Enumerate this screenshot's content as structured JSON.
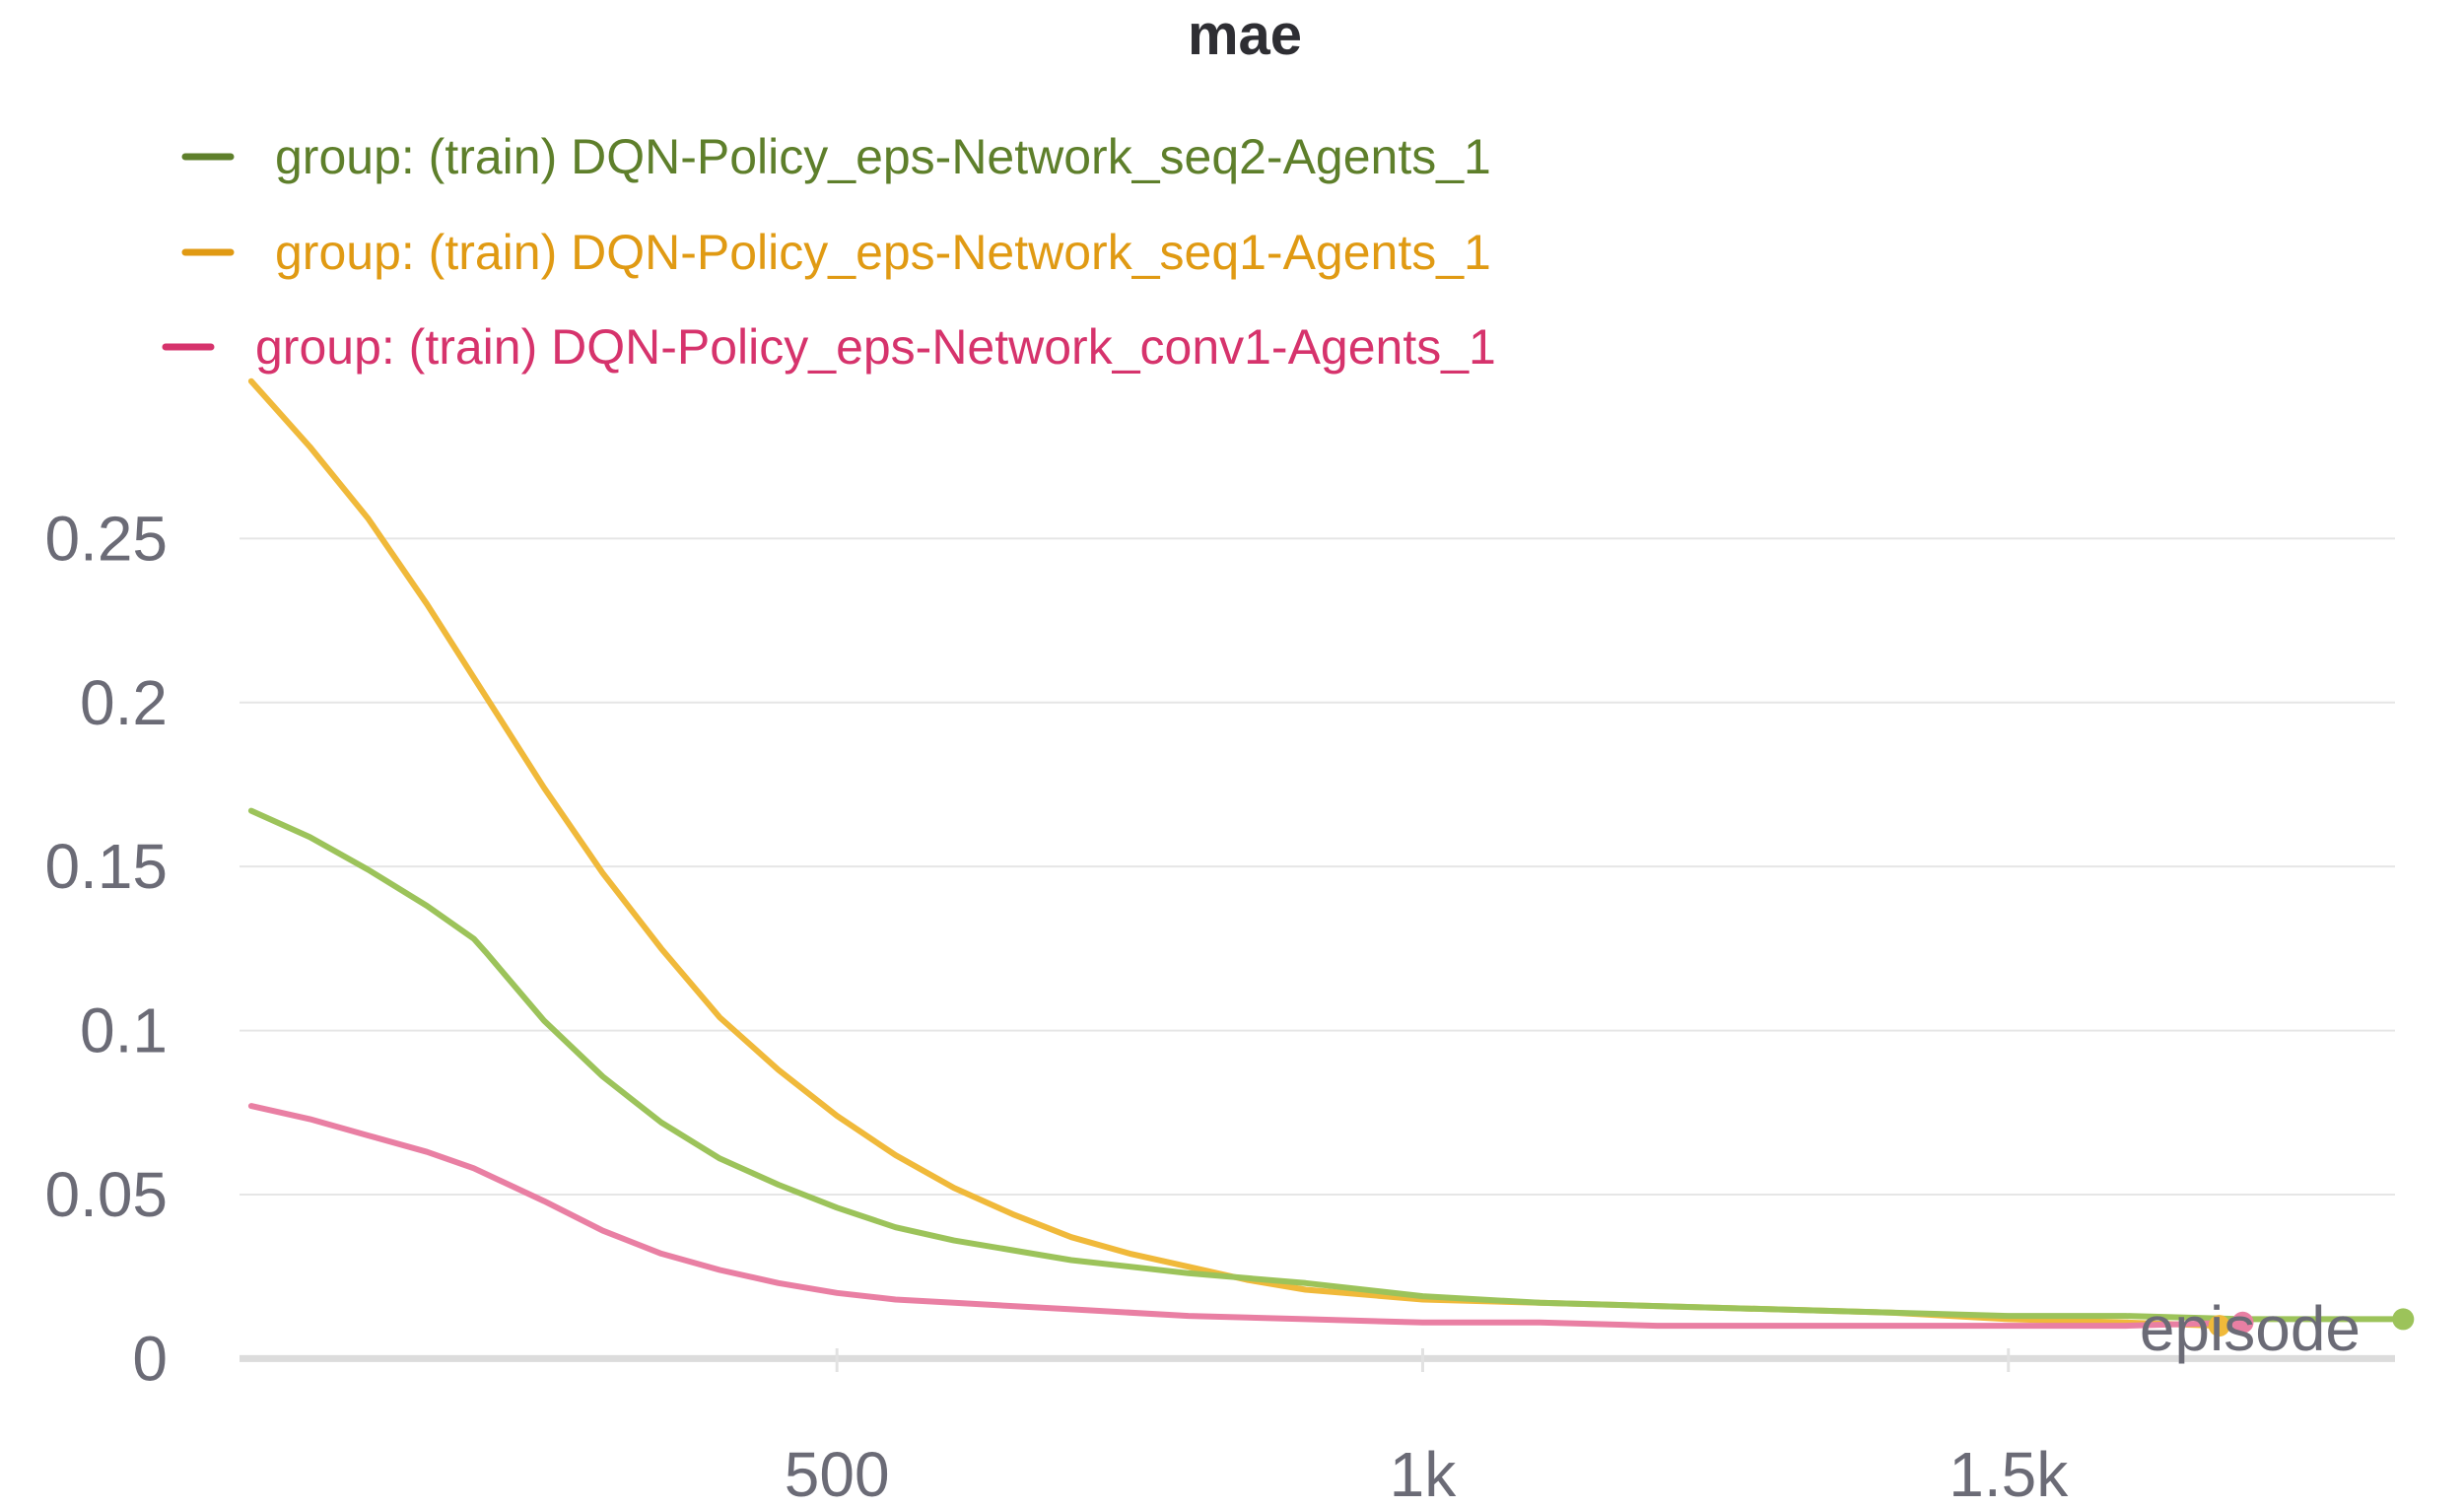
{
  "chart_data": {
    "type": "line",
    "title": "mae",
    "xlabel": "episode",
    "ylabel": "",
    "xlim": [
      -10,
      1830
    ],
    "ylim": [
      -0.005,
      0.3
    ],
    "x_ticks": [
      {
        "value": 500,
        "label": "500"
      },
      {
        "value": 1000,
        "label": "1k"
      },
      {
        "value": 1500,
        "label": "1.5k"
      }
    ],
    "y_ticks": [
      {
        "value": 0,
        "label": "0"
      },
      {
        "value": 0.05,
        "label": "0.05"
      },
      {
        "value": 0.1,
        "label": "0.1"
      },
      {
        "value": 0.15,
        "label": "0.15"
      },
      {
        "value": 0.2,
        "label": "0.2"
      },
      {
        "value": 0.25,
        "label": "0.25"
      }
    ],
    "grid": true,
    "legend_position": "top-left",
    "series": [
      {
        "name": "group: (train) DQN-Policy_eps-Network_seq2-Agents_1",
        "legend_color": "#5e7f2b",
        "line_color": "#9cc35a",
        "points": [
          [
            0,
            0.167
          ],
          [
            50,
            0.159
          ],
          [
            100,
            0.149
          ],
          [
            150,
            0.138
          ],
          [
            190,
            0.128
          ],
          [
            200,
            0.124
          ],
          [
            250,
            0.103
          ],
          [
            300,
            0.086
          ],
          [
            350,
            0.072
          ],
          [
            400,
            0.061
          ],
          [
            450,
            0.053
          ],
          [
            500,
            0.046
          ],
          [
            550,
            0.04
          ],
          [
            600,
            0.036
          ],
          [
            650,
            0.033
          ],
          [
            700,
            0.03
          ],
          [
            800,
            0.026
          ],
          [
            900,
            0.023
          ],
          [
            1000,
            0.019
          ],
          [
            1100,
            0.017
          ],
          [
            1200,
            0.016
          ],
          [
            1300,
            0.015
          ],
          [
            1400,
            0.014
          ],
          [
            1500,
            0.013
          ],
          [
            1600,
            0.013
          ],
          [
            1700,
            0.012
          ],
          [
            1837,
            0.012
          ]
        ]
      },
      {
        "name": "group: (train) DQN-Policy_eps-Network_seq1-Agents_1",
        "legend_color": "#e09a13",
        "line_color": "#f0b93a",
        "points": [
          [
            0,
            0.298
          ],
          [
            50,
            0.278
          ],
          [
            100,
            0.256
          ],
          [
            150,
            0.23
          ],
          [
            200,
            0.202
          ],
          [
            250,
            0.174
          ],
          [
            300,
            0.148
          ],
          [
            350,
            0.125
          ],
          [
            400,
            0.104
          ],
          [
            450,
            0.088
          ],
          [
            500,
            0.074
          ],
          [
            550,
            0.062
          ],
          [
            600,
            0.052
          ],
          [
            650,
            0.044
          ],
          [
            700,
            0.037
          ],
          [
            750,
            0.032
          ],
          [
            800,
            0.028
          ],
          [
            850,
            0.024
          ],
          [
            900,
            0.021
          ],
          [
            1000,
            0.018
          ],
          [
            1100,
            0.017
          ],
          [
            1200,
            0.016
          ],
          [
            1300,
            0.015
          ],
          [
            1400,
            0.014
          ],
          [
            1500,
            0.012
          ],
          [
            1600,
            0.011
          ],
          [
            1680,
            0.01
          ]
        ]
      },
      {
        "name": "group: (train) DQN-Policy_eps-Network_conv1-Agents_1",
        "legend_color": "#d6336c",
        "line_color": "#e97fa3",
        "points": [
          [
            0,
            0.077
          ],
          [
            50,
            0.073
          ],
          [
            100,
            0.068
          ],
          [
            150,
            0.063
          ],
          [
            190,
            0.058
          ],
          [
            250,
            0.048
          ],
          [
            300,
            0.039
          ],
          [
            350,
            0.032
          ],
          [
            400,
            0.027
          ],
          [
            450,
            0.023
          ],
          [
            500,
            0.02
          ],
          [
            550,
            0.018
          ],
          [
            600,
            0.017
          ],
          [
            700,
            0.015
          ],
          [
            800,
            0.013
          ],
          [
            900,
            0.012
          ],
          [
            1000,
            0.011
          ],
          [
            1100,
            0.011
          ],
          [
            1200,
            0.01
          ],
          [
            1300,
            0.01
          ],
          [
            1400,
            0.01
          ],
          [
            1500,
            0.01
          ],
          [
            1600,
            0.01
          ],
          [
            1700,
            0.011
          ]
        ]
      }
    ]
  }
}
